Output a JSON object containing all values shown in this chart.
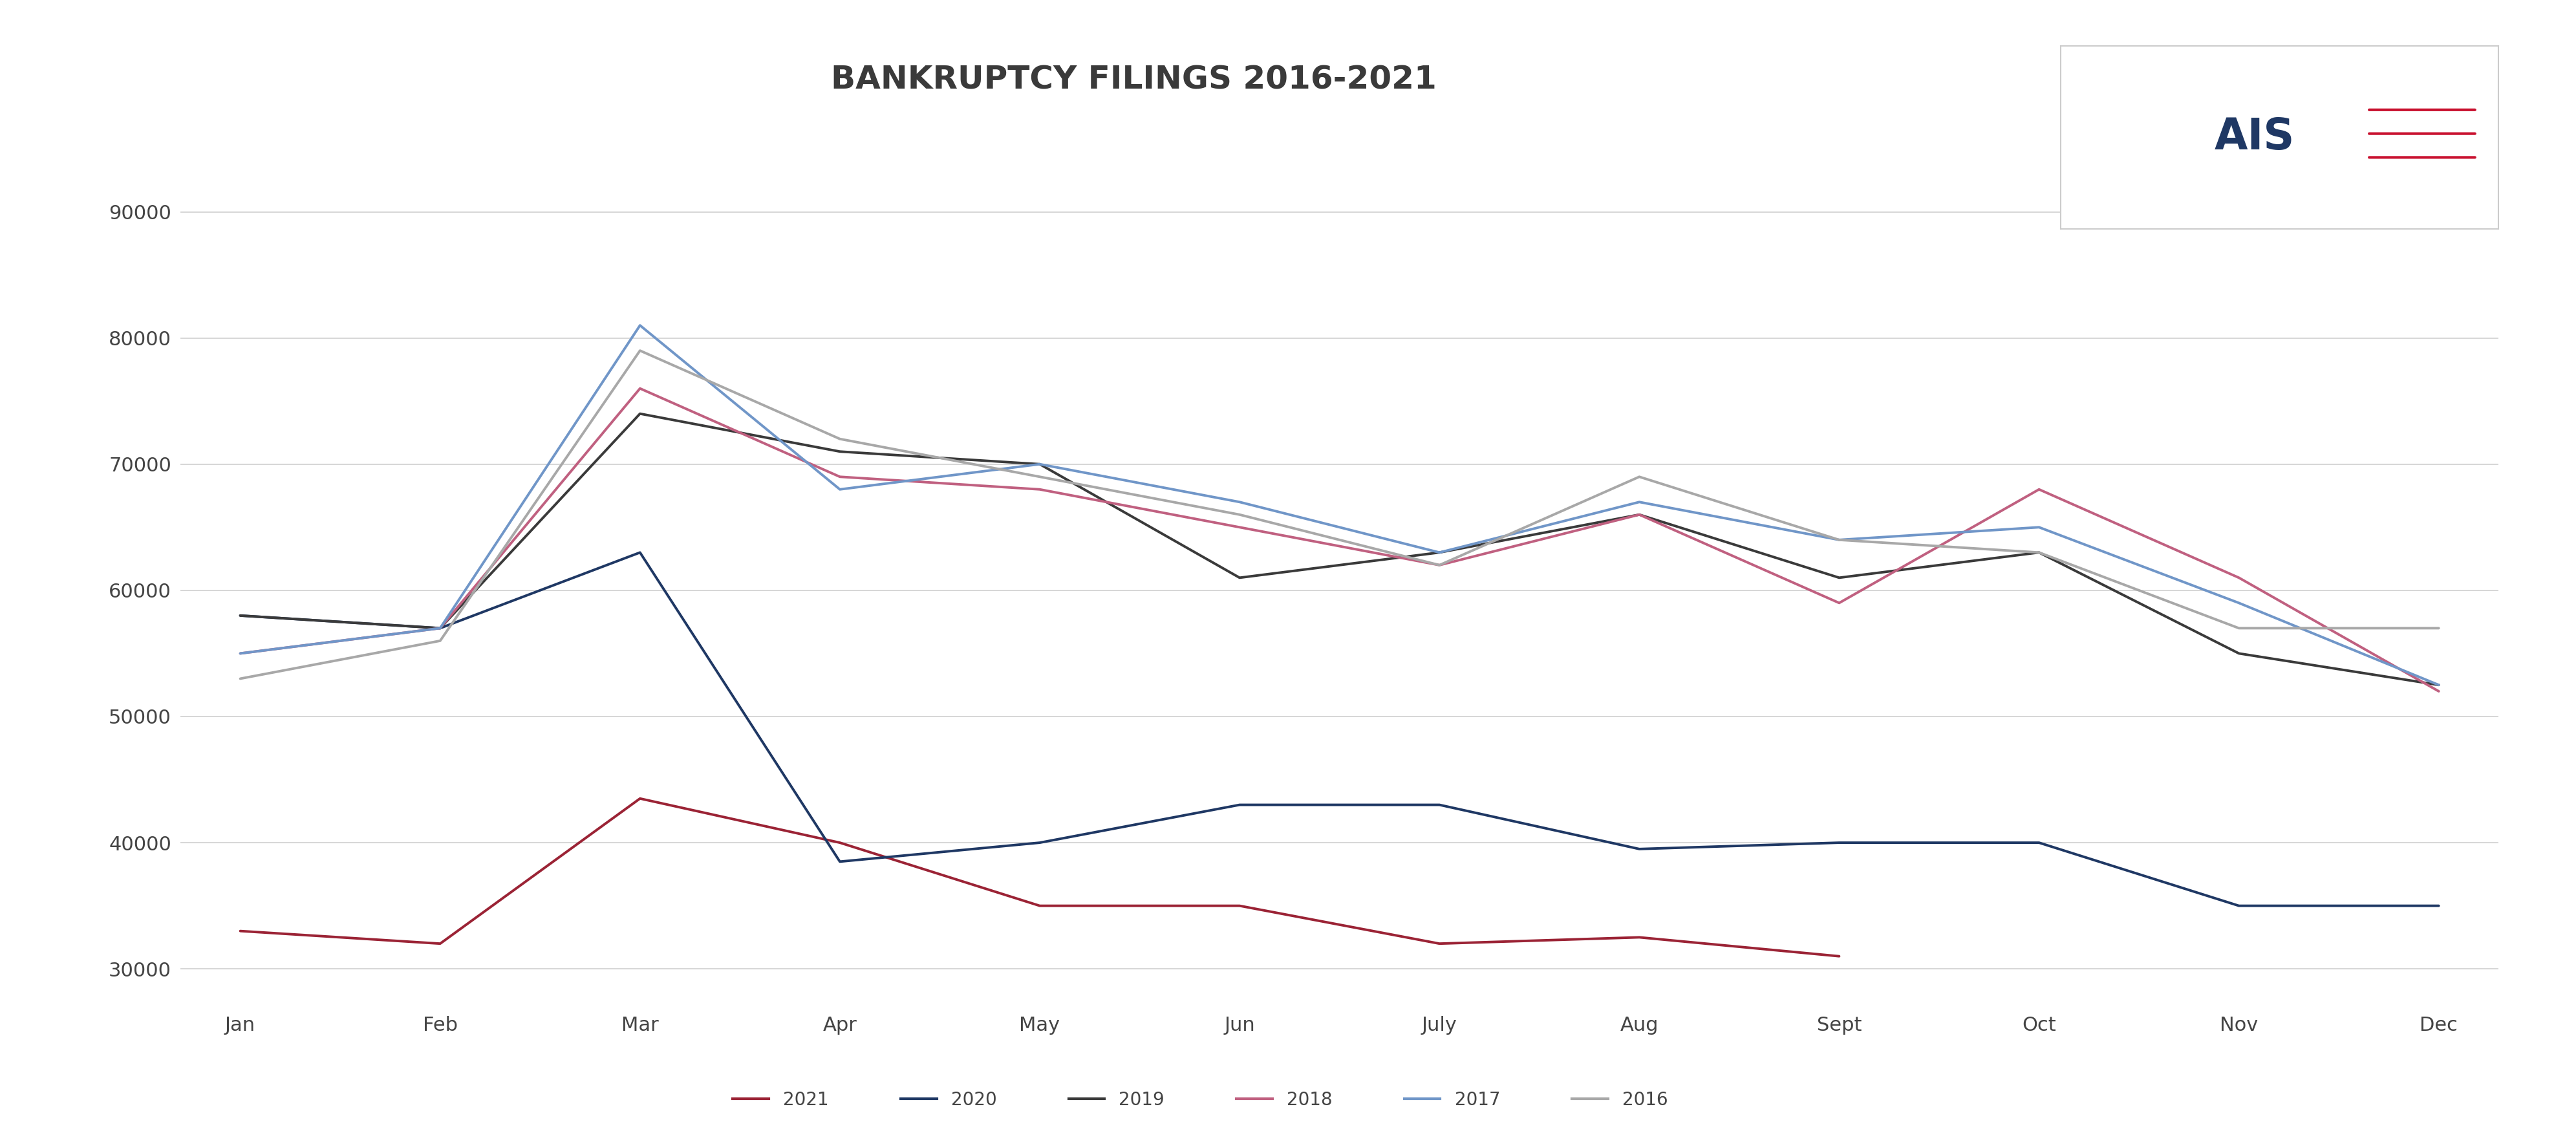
{
  "title": "BANKRUPTCY FILINGS 2016-2021",
  "months": [
    "Jan",
    "Feb",
    "Mar",
    "Apr",
    "May",
    "Jun",
    "July",
    "Aug",
    "Sept",
    "Oct",
    "Nov",
    "Dec"
  ],
  "series": {
    "2021": [
      33000,
      32000,
      43500,
      40000,
      35000,
      35000,
      32000,
      32500,
      31000,
      null,
      null,
      null
    ],
    "2020": [
      58000,
      57000,
      63000,
      38500,
      40000,
      43000,
      43000,
      39500,
      40000,
      40000,
      35000,
      35000
    ],
    "2019": [
      58000,
      57000,
      74000,
      71000,
      70000,
      61000,
      63000,
      66000,
      61000,
      63000,
      55000,
      52500
    ],
    "2018": [
      55000,
      57000,
      76000,
      69000,
      68000,
      65000,
      62000,
      66000,
      59000,
      68000,
      61000,
      52000
    ],
    "2017": [
      55000,
      57000,
      81000,
      68000,
      70000,
      67000,
      63000,
      67000,
      64000,
      65000,
      59000,
      52500
    ],
    "2016": [
      53000,
      56000,
      79000,
      72000,
      69000,
      66000,
      62000,
      69000,
      64000,
      63000,
      57000,
      57000
    ]
  },
  "colors": {
    "2021": "#9B2335",
    "2020": "#1F3864",
    "2019": "#3A3A3A",
    "2018": "#C06080",
    "2017": "#7096C8",
    "2016": "#A8A8A8"
  },
  "ylim": [
    27000,
    95000
  ],
  "yticks": [
    30000,
    40000,
    50000,
    60000,
    70000,
    80000,
    90000
  ],
  "background_color": "#ffffff",
  "grid_color": "#d0d0d0",
  "title_fontsize": 36,
  "tick_fontsize": 22,
  "legend_fontsize": 20,
  "line_width": 2.8
}
